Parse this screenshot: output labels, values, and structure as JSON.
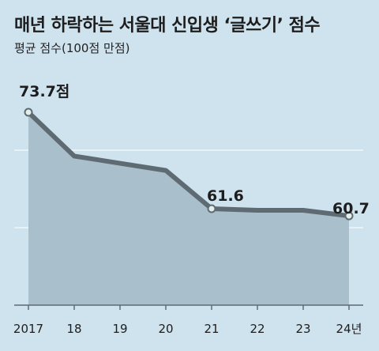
{
  "title": "매년 하락하는 서울대 신입생 ‘글쓰기’ 점수",
  "subtitle": "평균 점수(100점 만점)",
  "colors": {
    "background": "#cfe3ee",
    "area_fill": "#a9bfcb",
    "line": "#5f6b73",
    "marker_fill": "#e3eee9",
    "gridline": "#ffffff"
  },
  "chart_data": {
    "type": "area",
    "title": "매년 하락하는 서울대 신입생 ‘글쓰기’ 점수",
    "subtitle": "평균 점수(100점 만점)",
    "x": [
      "2017",
      "18",
      "19",
      "20",
      "21",
      "22",
      "23",
      "24년"
    ],
    "values": [
      73.7,
      68.2,
      67.3,
      66.4,
      61.6,
      61.4,
      61.4,
      60.7
    ],
    "ylim": [
      49.5,
      76.0
    ],
    "grid": true,
    "labeled_points": [
      {
        "index": 0,
        "label": "73.7점"
      },
      {
        "index": 4,
        "label": "61.6"
      },
      {
        "index": 7,
        "label": "60.7"
      }
    ]
  }
}
